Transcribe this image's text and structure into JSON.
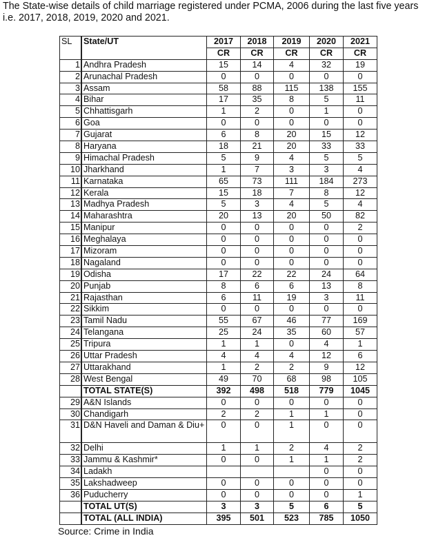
{
  "intro": "The State-wise details of child marriage registered under PCMA, 2006 during the last five years i.e. 2017, 2018, 2019, 2020 and 2021.",
  "table": {
    "headers": {
      "sl": "SL",
      "state": "State/UT",
      "years": [
        "2017",
        "2018",
        "2019",
        "2020",
        "2021"
      ],
      "sub": [
        "CR",
        "CR",
        "CR",
        "CR",
        "CR"
      ]
    },
    "rows": [
      [
        "1",
        "Andhra Pradesh",
        "15",
        "14",
        "4",
        "32",
        "19"
      ],
      [
        "2",
        "Arunachal Pradesh",
        "0",
        "0",
        "0",
        "0",
        "0"
      ],
      [
        "3",
        "Assam",
        "58",
        "88",
        "115",
        "138",
        "155"
      ],
      [
        "4",
        "Bihar",
        "17",
        "35",
        "8",
        "5",
        "11"
      ],
      [
        "5",
        "Chhattisgarh",
        "1",
        "2",
        "0",
        "1",
        "0"
      ],
      [
        "6",
        "Goa",
        "0",
        "0",
        "0",
        "0",
        "0"
      ],
      [
        "7",
        "Gujarat",
        "6",
        "8",
        "20",
        "15",
        "12"
      ],
      [
        "8",
        "Haryana",
        "18",
        "21",
        "20",
        "33",
        "33"
      ],
      [
        "9",
        "Himachal Pradesh",
        "5",
        "9",
        "4",
        "5",
        "5"
      ],
      [
        "10",
        "Jharkhand",
        "1",
        "7",
        "3",
        "3",
        "4"
      ],
      [
        "11",
        "Karnataka",
        "65",
        "73",
        "111",
        "184",
        "273"
      ],
      [
        "12",
        "Kerala",
        "15",
        "18",
        "7",
        "8",
        "12"
      ],
      [
        "13",
        "Madhya Pradesh",
        "5",
        "3",
        "4",
        "5",
        "4"
      ],
      [
        "14",
        "Maharashtra",
        "20",
        "13",
        "20",
        "50",
        "82"
      ],
      [
        "15",
        "Manipur",
        "0",
        "0",
        "0",
        "0",
        "2"
      ],
      [
        "16",
        "Meghalaya",
        "0",
        "0",
        "0",
        "0",
        "0"
      ],
      [
        "17",
        "Mizoram",
        "0",
        "0",
        "0",
        "0",
        "0"
      ],
      [
        "18",
        "Nagaland",
        "0",
        "0",
        "0",
        "0",
        "0"
      ],
      [
        "19",
        "Odisha",
        "17",
        "22",
        "22",
        "24",
        "64"
      ],
      [
        "20",
        "Punjab",
        "8",
        "6",
        "6",
        "13",
        "8"
      ],
      [
        "21",
        "Rajasthan",
        "6",
        "11",
        "19",
        "3",
        "11"
      ],
      [
        "22",
        "Sikkim",
        "0",
        "0",
        "0",
        "0",
        "0"
      ],
      [
        "23",
        "Tamil Nadu",
        "55",
        "67",
        "46",
        "77",
        "169"
      ],
      [
        "24",
        "Telangana",
        "25",
        "24",
        "35",
        "60",
        "57"
      ],
      [
        "25",
        "Tripura",
        "1",
        "1",
        "0",
        "4",
        "1"
      ],
      [
        "26",
        "Uttar Pradesh",
        "4",
        "4",
        "4",
        "12",
        "6"
      ],
      [
        "27",
        "Uttarakhand",
        "1",
        "2",
        "2",
        "9",
        "12"
      ],
      [
        "28",
        "West Bengal",
        "49",
        "70",
        "68",
        "98",
        "105"
      ],
      [
        "",
        "TOTAL STATE(S)",
        "392",
        "498",
        "518",
        "779",
        "1045"
      ],
      [
        "29",
        "A&N Islands",
        "0",
        "0",
        "0",
        "0",
        "0"
      ],
      [
        "30",
        "Chandigarh",
        "2",
        "2",
        "1",
        "1",
        "0"
      ],
      [
        "31",
        "D&N Haveli and Daman & Diu+",
        "0",
        "0",
        "1",
        "0",
        "0"
      ],
      [
        "32",
        "Delhi",
        "1",
        "1",
        "2",
        "4",
        "2"
      ],
      [
        "33",
        "Jammu & Kashmir*",
        "0",
        "0",
        "1",
        "1",
        "2"
      ],
      [
        "34",
        "Ladakh",
        "",
        "",
        "",
        "0",
        "0"
      ],
      [
        "35",
        "Lakshadweep",
        "0",
        "0",
        "0",
        "0",
        "0"
      ],
      [
        "36",
        "Puducherry",
        "0",
        "0",
        "0",
        "0",
        "1"
      ],
      [
        "",
        "TOTAL UT(S)",
        "3",
        "3",
        "5",
        "6",
        "5"
      ],
      [
        "",
        "TOTAL (ALL INDIA)",
        "395",
        "501",
        "523",
        "785",
        "1050"
      ]
    ]
  },
  "source": "Source: Crime in India"
}
